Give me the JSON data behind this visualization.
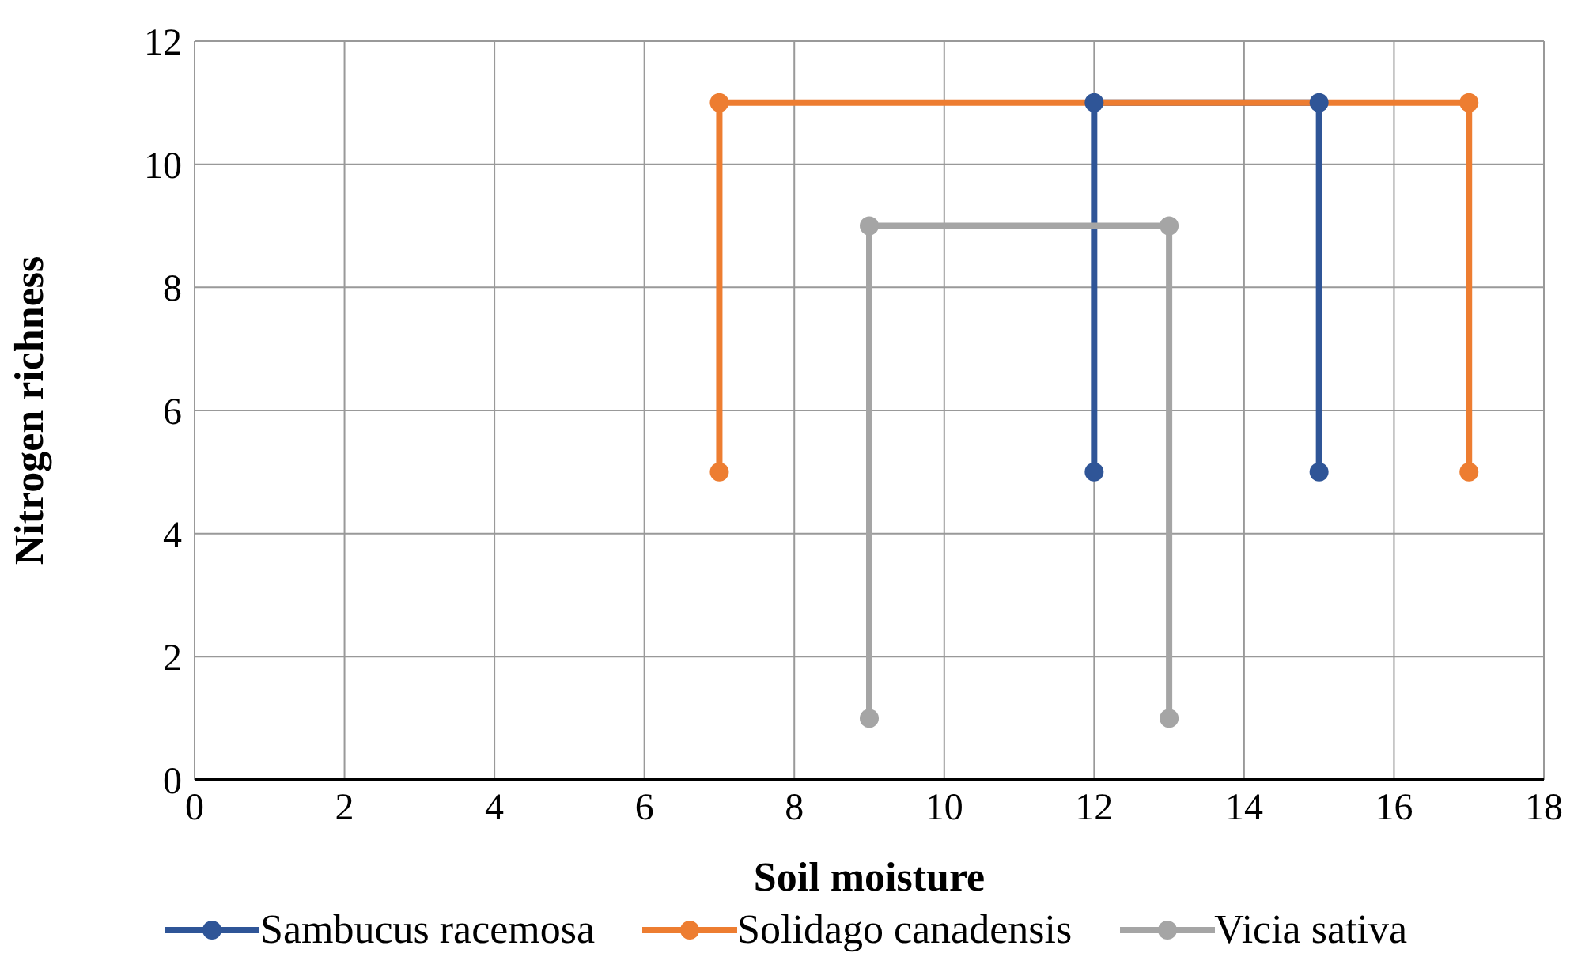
{
  "chart_data": {
    "type": "line",
    "xlabel": "Soil moisture",
    "ylabel": "Nitrogen richness",
    "series": [
      {
        "name": "Sambucus racemosa",
        "color": "#2f5597",
        "x": [
          12,
          12,
          15,
          15
        ],
        "values": [
          5,
          11,
          11,
          5
        ]
      },
      {
        "name": "Solidago canadensis",
        "color": "#ed7d31",
        "x": [
          7,
          7,
          17,
          17
        ],
        "values": [
          5,
          11,
          11,
          5
        ]
      },
      {
        "name": "Vicia sativa",
        "color": "#a5a5a5",
        "x": [
          9,
          9,
          13,
          13
        ],
        "values": [
          1,
          9,
          9,
          1
        ]
      }
    ],
    "xlim": [
      0,
      18
    ],
    "xticks": [
      0,
      2,
      4,
      6,
      8,
      10,
      12,
      14,
      16,
      18
    ],
    "ylim": [
      0,
      12
    ],
    "yticks": [
      0,
      2,
      4,
      6,
      8,
      10,
      12
    ],
    "grid": true,
    "legend": "bottom",
    "marker": "circle",
    "line_style": "solid"
  }
}
